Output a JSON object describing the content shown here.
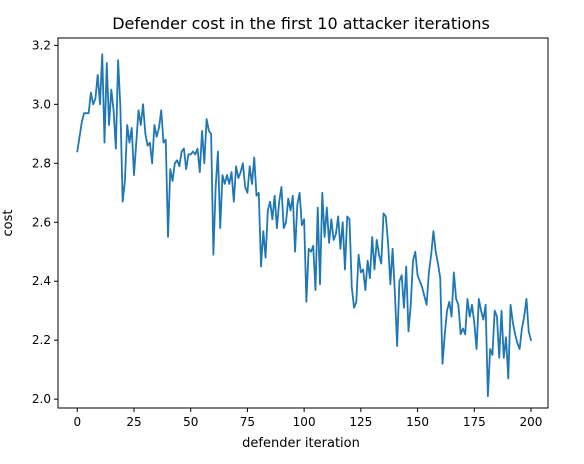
{
  "chart_data": {
    "type": "line",
    "title": "Defender cost in the first 10 attacker iterations",
    "xlabel": "defender iteration",
    "ylabel": "cost",
    "xlim": [
      -8.5,
      207.5
    ],
    "ylim": [
      1.97,
      3.225
    ],
    "xticks": [
      0,
      25,
      50,
      75,
      100,
      125,
      150,
      175,
      200
    ],
    "yticks": [
      2.0,
      2.2,
      2.4,
      2.6,
      2.8,
      3.0,
      3.2
    ],
    "xtick_labels": [
      "0",
      "25",
      "50",
      "75",
      "100",
      "125",
      "150",
      "175",
      "200"
    ],
    "ytick_labels": [
      "2.0",
      "2.2",
      "2.4",
      "2.6",
      "2.8",
      "3.0",
      "3.2"
    ],
    "grid": false,
    "line_color": "#1f77b4",
    "series": [
      {
        "values": [
          2.84,
          2.89,
          2.94,
          2.97,
          2.97,
          2.97,
          3.04,
          3.0,
          3.02,
          3.1,
          3.0,
          3.17,
          2.87,
          3.14,
          2.93,
          3.05,
          2.98,
          2.85,
          3.15,
          2.99,
          2.67,
          2.74,
          2.93,
          2.87,
          2.92,
          2.76,
          2.87,
          2.98,
          2.93,
          3.0,
          2.9,
          2.86,
          2.87,
          2.8,
          2.93,
          2.89,
          2.92,
          2.98,
          2.87,
          2.88,
          2.55,
          2.78,
          2.74,
          2.8,
          2.81,
          2.79,
          2.84,
          2.85,
          2.78,
          2.83,
          2.83,
          2.84,
          2.83,
          2.85,
          2.77,
          2.91,
          2.8,
          2.95,
          2.91,
          2.9,
          2.49,
          2.72,
          2.84,
          2.58,
          2.76,
          2.73,
          2.76,
          2.73,
          2.77,
          2.67,
          2.79,
          2.75,
          2.77,
          2.8,
          2.72,
          2.7,
          2.79,
          2.73,
          2.82,
          2.69,
          2.7,
          2.45,
          2.57,
          2.48,
          2.64,
          2.67,
          2.61,
          2.69,
          2.58,
          2.67,
          2.72,
          2.58,
          2.6,
          2.68,
          2.64,
          2.69,
          2.5,
          2.66,
          2.7,
          2.59,
          2.61,
          2.33,
          2.51,
          2.5,
          2.52,
          2.37,
          2.65,
          2.39,
          2.7,
          2.55,
          2.65,
          2.53,
          2.61,
          2.54,
          2.56,
          2.62,
          2.51,
          2.6,
          2.44,
          2.62,
          2.61,
          2.38,
          2.31,
          2.33,
          2.49,
          2.43,
          2.44,
          2.37,
          2.47,
          2.41,
          2.55,
          2.44,
          2.54,
          2.49,
          2.46,
          2.63,
          2.62,
          2.53,
          2.39,
          2.51,
          2.36,
          2.18,
          2.4,
          2.42,
          2.31,
          2.45,
          2.23,
          2.32,
          2.47,
          2.5,
          2.42,
          2.4,
          2.38,
          2.35,
          2.32,
          2.43,
          2.49,
          2.57,
          2.5,
          2.46,
          2.41,
          2.12,
          2.22,
          2.3,
          2.33,
          2.28,
          2.43,
          2.34,
          2.32,
          2.22,
          2.24,
          2.22,
          2.34,
          2.28,
          2.32,
          2.26,
          2.17,
          2.34,
          2.3,
          2.27,
          2.32,
          2.01,
          2.17,
          2.15,
          2.3,
          2.28,
          2.14,
          2.3,
          2.14,
          2.21,
          2.07,
          2.32,
          2.26,
          2.22,
          2.19,
          2.17,
          2.24,
          2.28,
          2.34,
          2.23,
          2.2
        ]
      }
    ]
  }
}
